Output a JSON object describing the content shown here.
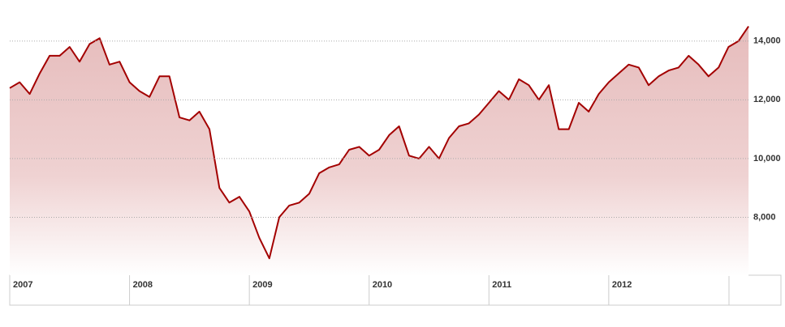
{
  "chart_data": {
    "type": "area",
    "x": [
      2007.0,
      2007.083,
      2007.167,
      2007.25,
      2007.333,
      2007.417,
      2007.5,
      2007.583,
      2007.667,
      2007.75,
      2007.833,
      2007.917,
      2008.0,
      2008.083,
      2008.167,
      2008.25,
      2008.333,
      2008.417,
      2008.5,
      2008.583,
      2008.667,
      2008.75,
      2008.833,
      2008.917,
      2009.0,
      2009.083,
      2009.167,
      2009.25,
      2009.333,
      2009.417,
      2009.5,
      2009.583,
      2009.667,
      2009.75,
      2009.833,
      2009.917,
      2010.0,
      2010.083,
      2010.167,
      2010.25,
      2010.333,
      2010.417,
      2010.5,
      2010.583,
      2010.667,
      2010.75,
      2010.833,
      2010.917,
      2011.0,
      2011.083,
      2011.167,
      2011.25,
      2011.333,
      2011.417,
      2011.5,
      2011.583,
      2011.667,
      2011.75,
      2011.833,
      2011.917,
      2012.0,
      2012.083,
      2012.167,
      2012.25,
      2012.333,
      2012.417,
      2012.5,
      2012.583,
      2012.667,
      2012.75,
      2012.833,
      2012.917,
      2013.0,
      2013.083,
      2013.167
    ],
    "values": [
      12400,
      12600,
      12200,
      12900,
      13500,
      13500,
      13800,
      13300,
      13900,
      14100,
      13200,
      13300,
      12600,
      12300,
      12100,
      12800,
      12800,
      11400,
      11300,
      11600,
      11000,
      9000,
      8500,
      8700,
      8200,
      7300,
      6600,
      8000,
      8400,
      8500,
      8800,
      9500,
      9700,
      9800,
      10300,
      10400,
      10100,
      10300,
      10800,
      11100,
      10100,
      10000,
      10400,
      10000,
      10700,
      11100,
      11200,
      11500,
      11900,
      12300,
      12000,
      12700,
      12500,
      12000,
      12500,
      11000,
      11000,
      11900,
      11600,
      12200,
      12600,
      12900,
      13200,
      13100,
      12500,
      12800,
      13000,
      13100,
      13500,
      13200,
      12800,
      13100,
      13800,
      14000,
      14500
    ],
    "color": "#a30000",
    "xlim": [
      2007,
      2013.18
    ],
    "xticks": [
      2007,
      2008,
      2009,
      2010,
      2011,
      2012
    ],
    "ylim": [
      6000,
      15400
    ],
    "yticks": [
      {
        "value": 8000,
        "label": "8,000"
      },
      {
        "value": 10000,
        "label": "10,000"
      },
      {
        "value": 12000,
        "label": "12,000"
      },
      {
        "value": 14000,
        "label": "14,000"
      }
    ],
    "grid": true
  }
}
